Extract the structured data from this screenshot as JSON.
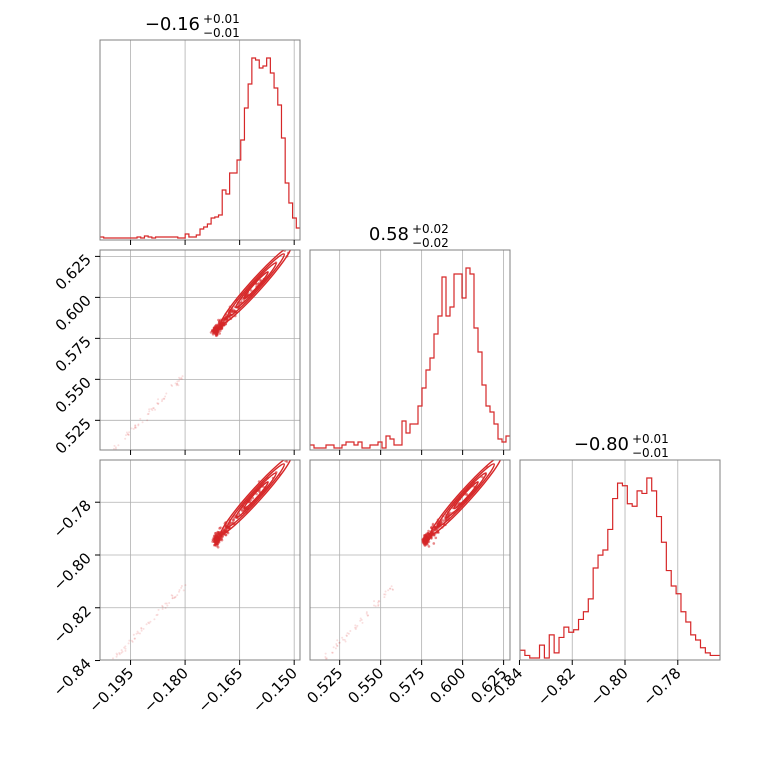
{
  "chart_data": {
    "type": "corner",
    "color": "#d62728",
    "titles": [
      {
        "main": "−0.16",
        "sup": "+0.01",
        "sub": "−0.01"
      },
      {
        "main": "0.58",
        "sup": "+0.02",
        "sub": "−0.02"
      },
      {
        "main": "−0.80",
        "sup": "+0.01",
        "sub": "−0.01"
      }
    ],
    "params": [
      {
        "range": [
          -0.2034,
          -0.1484
        ],
        "ticks": [
          -0.195,
          -0.18,
          -0.165,
          -0.15
        ],
        "tick_labels": [
          "−0.195",
          "−0.180",
          "−0.165",
          "−0.150"
        ]
      },
      {
        "range": [
          0.5069,
          0.6289
        ],
        "ticks": [
          0.525,
          0.55,
          0.575,
          0.6,
          0.625
        ],
        "tick_labels": [
          "0.525",
          "0.550",
          "0.575",
          "0.600",
          "0.625"
        ]
      },
      {
        "range": [
          -0.8398,
          -0.764
        ],
        "ticks": [
          -0.84,
          -0.82,
          -0.8,
          -0.78
        ],
        "tick_labels": [
          "−0.84",
          "−0.82",
          "−0.80",
          "−0.78"
        ]
      }
    ],
    "histograms": [
      [
        1,
        0,
        0,
        0,
        0,
        0,
        0,
        0,
        0,
        0,
        1,
        0,
        2,
        1,
        0,
        1,
        1,
        1,
        1,
        1,
        1,
        0,
        0,
        4,
        1,
        1,
        3,
        9,
        11,
        14,
        20,
        21,
        23,
        48,
        44,
        65,
        65,
        78,
        98,
        130,
        154,
        180,
        178,
        170,
        172,
        180,
        165,
        150,
        133,
        100,
        55,
        35,
        20,
        10
      ],
      [
        1,
        0,
        0,
        0,
        1,
        1,
        0,
        0,
        1,
        2,
        2,
        1,
        2,
        0,
        0,
        1,
        1,
        2,
        0,
        4,
        3,
        1,
        1,
        9,
        5,
        8,
        8,
        14,
        20,
        26,
        30,
        38,
        44,
        57,
        44,
        47,
        58,
        58,
        50,
        60,
        58,
        40,
        32,
        21,
        14,
        12,
        8,
        3,
        2,
        4
      ],
      [
        3,
        1,
        0,
        0,
        5,
        0,
        9,
        2,
        8,
        12,
        10,
        11,
        15,
        18,
        23,
        35,
        40,
        42,
        50,
        62,
        68,
        67,
        60,
        59,
        65,
        64,
        70,
        65,
        55,
        45,
        34,
        28,
        25,
        18,
        14,
        9,
        7,
        4,
        2,
        1,
        1
      ]
    ],
    "scatter_pairs": [
      {
        "x": 0,
        "y": 1
      },
      {
        "x": 0,
        "y": 2
      },
      {
        "x": 1,
        "y": 2
      }
    ]
  }
}
